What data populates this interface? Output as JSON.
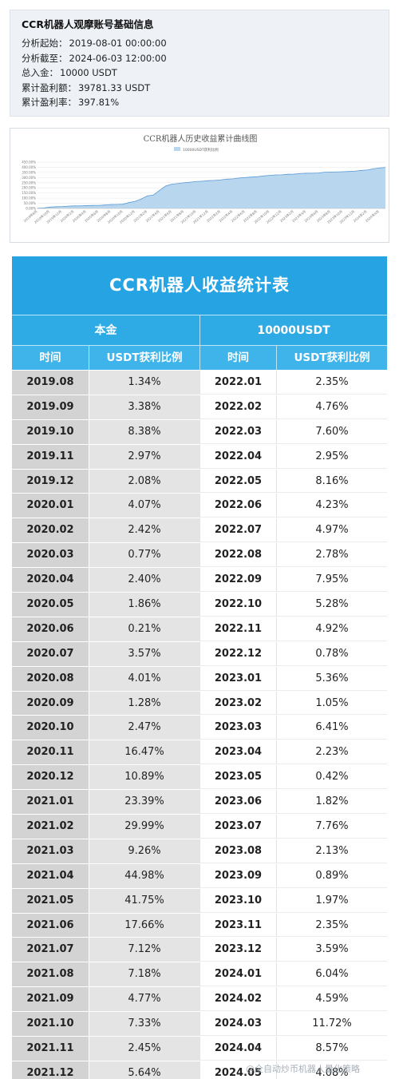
{
  "info": {
    "title": "CCR机器人观摩账号基础信息",
    "lines": [
      {
        "label": "分析起始：",
        "value": "2019-08-01 00:00:00"
      },
      {
        "label": "分析截至：",
        "value": "2024-06-03 12:00:00"
      },
      {
        "label": "总入金：",
        "value": "10000 USDT"
      },
      {
        "label": "累计盈利额：",
        "value": "39781.33 USDT"
      },
      {
        "label": "累计盈利率：",
        "value": "397.81%"
      }
    ]
  },
  "chart_data": {
    "type": "area",
    "title": "CCR机器人历史收益累计曲线图",
    "legend": "10000USDT获利比例",
    "legend_position": "top",
    "y_tick_labels": [
      "0.00%",
      "50.00%",
      "100.00%",
      "150.00%",
      "200.00%",
      "250.00%",
      "300.00%",
      "350.00%",
      "400.00%",
      "450.00%"
    ],
    "ylim": [
      0,
      450
    ],
    "x_tick_labels": [
      "2019年8月",
      "2019年10月",
      "2019年12月",
      "2020年2月",
      "2020年4月",
      "2020年6月",
      "2020年8月",
      "2020年10月",
      "2020年12月",
      "2021年2月",
      "2021年4月",
      "2021年6月",
      "2021年8月",
      "2021年10月",
      "2021年12月",
      "2022年2月",
      "2022年4月",
      "2022年6月",
      "2022年8月",
      "2022年10月",
      "2022年12月",
      "2023年2月",
      "2023年4月",
      "2023年6月",
      "2023年8月",
      "2023年10月",
      "2023年12月",
      "2024年2月",
      "2024年4月"
    ],
    "x": [
      "2019.08",
      "2019.09",
      "2019.10",
      "2019.11",
      "2019.12",
      "2020.01",
      "2020.02",
      "2020.03",
      "2020.04",
      "2020.05",
      "2020.06",
      "2020.07",
      "2020.08",
      "2020.09",
      "2020.10",
      "2020.11",
      "2020.12",
      "2021.01",
      "2021.02",
      "2021.03",
      "2021.04",
      "2021.05",
      "2021.06",
      "2021.07",
      "2021.08",
      "2021.09",
      "2021.10",
      "2021.11",
      "2021.12",
      "2022.01",
      "2022.02",
      "2022.03",
      "2022.04",
      "2022.05",
      "2022.06",
      "2022.07",
      "2022.08",
      "2022.09",
      "2022.10",
      "2022.11",
      "2022.12",
      "2023.01",
      "2023.02",
      "2023.03",
      "2023.04",
      "2023.05",
      "2023.06",
      "2023.07",
      "2023.08",
      "2023.09",
      "2023.10",
      "2023.11",
      "2023.12",
      "2024.01",
      "2024.02",
      "2024.03",
      "2024.04",
      "2024.05"
    ],
    "y": [
      1.34,
      4.72,
      13.1,
      16.07,
      18.15,
      22.22,
      24.64,
      25.41,
      27.81,
      29.67,
      29.88,
      33.45,
      37.46,
      38.74,
      41.21,
      57.68,
      68.57,
      91.96,
      121.95,
      131.21,
      176.19,
      217.94,
      235.6,
      242.72,
      249.9,
      254.67,
      262.0,
      264.45,
      270.09,
      272.44,
      277.2,
      284.8,
      287.75,
      295.91,
      300.14,
      305.11,
      307.89,
      315.84,
      321.12,
      326.04,
      326.82,
      332.18,
      333.23,
      339.64,
      341.87,
      342.29,
      344.11,
      351.87,
      354.0,
      354.89,
      356.86,
      359.21,
      362.8,
      368.84,
      373.43,
      385.15,
      393.72,
      397.8
    ]
  },
  "table": {
    "title": "CCR机器人收益统计表",
    "header_left": "本金",
    "header_right": "10000USDT",
    "col_time": "时间",
    "col_ratio": "USDT获利比例",
    "rows": [
      [
        "2019.08",
        "1.34%",
        "2022.01",
        "2.35%"
      ],
      [
        "2019.09",
        "3.38%",
        "2022.02",
        "4.76%"
      ],
      [
        "2019.10",
        "8.38%",
        "2022.03",
        "7.60%"
      ],
      [
        "2019.11",
        "2.97%",
        "2022.04",
        "2.95%"
      ],
      [
        "2019.12",
        "2.08%",
        "2022.05",
        "8.16%"
      ],
      [
        "2020.01",
        "4.07%",
        "2022.06",
        "4.23%"
      ],
      [
        "2020.02",
        "2.42%",
        "2022.07",
        "4.97%"
      ],
      [
        "2020.03",
        "0.77%",
        "2022.08",
        "2.78%"
      ],
      [
        "2020.04",
        "2.40%",
        "2022.09",
        "7.95%"
      ],
      [
        "2020.05",
        "1.86%",
        "2022.10",
        "5.28%"
      ],
      [
        "2020.06",
        "0.21%",
        "2022.11",
        "4.92%"
      ],
      [
        "2020.07",
        "3.57%",
        "2022.12",
        "0.78%"
      ],
      [
        "2020.08",
        "4.01%",
        "2023.01",
        "5.36%"
      ],
      [
        "2020.09",
        "1.28%",
        "2023.02",
        "1.05%"
      ],
      [
        "2020.10",
        "2.47%",
        "2023.03",
        "6.41%"
      ],
      [
        "2020.11",
        "16.47%",
        "2023.04",
        "2.23%"
      ],
      [
        "2020.12",
        "10.89%",
        "2023.05",
        "0.42%"
      ],
      [
        "2021.01",
        "23.39%",
        "2023.06",
        "1.82%"
      ],
      [
        "2021.02",
        "29.99%",
        "2023.07",
        "7.76%"
      ],
      [
        "2021.03",
        "9.26%",
        "2023.08",
        "2.13%"
      ],
      [
        "2021.04",
        "44.98%",
        "2023.09",
        "0.89%"
      ],
      [
        "2021.05",
        "41.75%",
        "2023.10",
        "1.97%"
      ],
      [
        "2021.06",
        "17.66%",
        "2023.11",
        "2.35%"
      ],
      [
        "2021.07",
        "7.12%",
        "2023.12",
        "3.59%"
      ],
      [
        "2021.08",
        "7.18%",
        "2024.01",
        "6.04%"
      ],
      [
        "2021.09",
        "4.77%",
        "2024.02",
        "4.59%"
      ],
      [
        "2021.10",
        "7.33%",
        "2024.03",
        "11.72%"
      ],
      [
        "2021.11",
        "2.45%",
        "2024.04",
        "8.57%"
      ],
      [
        "2021.12",
        "5.64%",
        "2024.05",
        "4.08%"
      ]
    ]
  },
  "watermark": "@全自动炒币机器人量化策略",
  "colors": {
    "header_blue": "#26a3e3",
    "subheader_blue": "#3fb4ea",
    "area_fill": "#b8d6ee",
    "area_line": "#5b9bd5"
  }
}
